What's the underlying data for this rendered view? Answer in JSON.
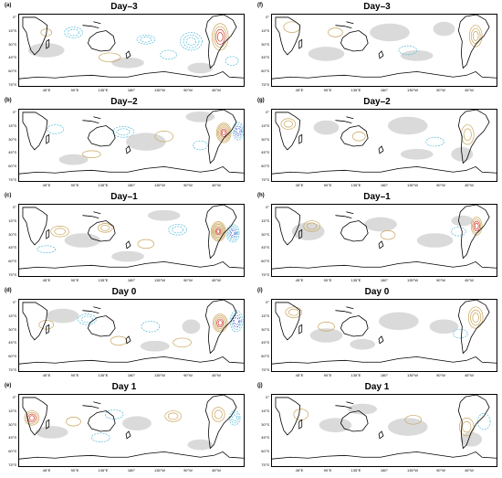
{
  "panels": [
    {
      "id": "a",
      "title": "Day–3",
      "label": "(a)"
    },
    {
      "id": "b",
      "title": "Day–2",
      "label": "(b)"
    },
    {
      "id": "c",
      "title": "Day–1",
      "label": "(c)"
    },
    {
      "id": "d",
      "title": "Day 0",
      "label": "(d)"
    },
    {
      "id": "e",
      "title": "Day 1",
      "label": "(e)"
    },
    {
      "id": "f",
      "title": "Day–3",
      "label": "(f)"
    },
    {
      "id": "g",
      "title": "Day–2",
      "label": "(g)"
    },
    {
      "id": "h",
      "title": "Day–1",
      "label": "(h)"
    },
    {
      "id": "i",
      "title": "Day 0",
      "label": "(i)"
    },
    {
      "id": "j",
      "title": "Day 1",
      "label": "(j)"
    }
  ],
  "axes": {
    "y_ticks": [
      "0°",
      "15°S",
      "30°S",
      "45°S",
      "60°S",
      "75°S"
    ],
    "x_ticks": [
      "45°E",
      "90°E",
      "135°E",
      "180°",
      "135°W",
      "90°W",
      "45°W"
    ]
  },
  "colors": {
    "positive": "#c8a45a",
    "positive_strong": "#d2362a",
    "negative": "#4fb8d8",
    "negative_strong": "#3a52c8",
    "shading": "#d3d3d3",
    "coast": "#000000"
  }
}
